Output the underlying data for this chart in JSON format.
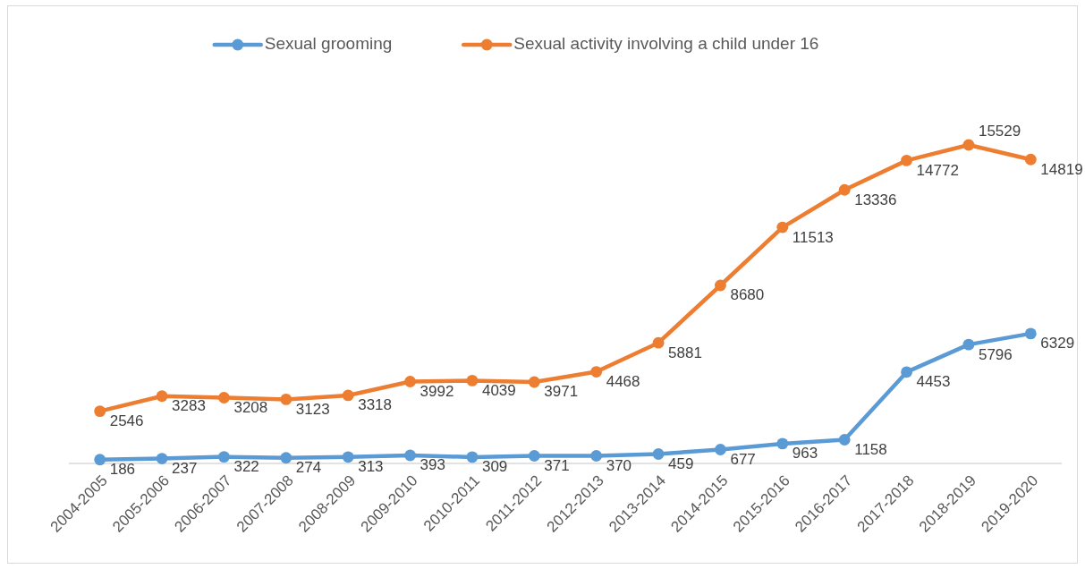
{
  "chart_data": {
    "type": "line",
    "categories": [
      "2004-2005",
      "2005-2006",
      "2006-2007",
      "2007-2008",
      "2008-2009",
      "2009-2010",
      "2010-2011",
      "2011-2012",
      "2012-2013",
      "2013-2014",
      "2014-2015",
      "2015-2016",
      "2016-2017",
      "2017-2018",
      "2018-2019",
      "2019-2020"
    ],
    "series": [
      {
        "name": "Sexual grooming",
        "color": "#5b9bd5",
        "values": [
          186,
          237,
          322,
          274,
          313,
          393,
          309,
          371,
          370,
          459,
          677,
          963,
          1158,
          4453,
          5796,
          6329
        ]
      },
      {
        "name": "Sexual activity involving a child under 16",
        "color": "#ed7d31",
        "values": [
          2546,
          3283,
          3208,
          3123,
          3318,
          3992,
          4039,
          3971,
          4468,
          5881,
          8680,
          11513,
          13336,
          14772,
          15529,
          14819
        ]
      }
    ],
    "data_labels": true,
    "legend": "top",
    "marker": "circle"
  }
}
